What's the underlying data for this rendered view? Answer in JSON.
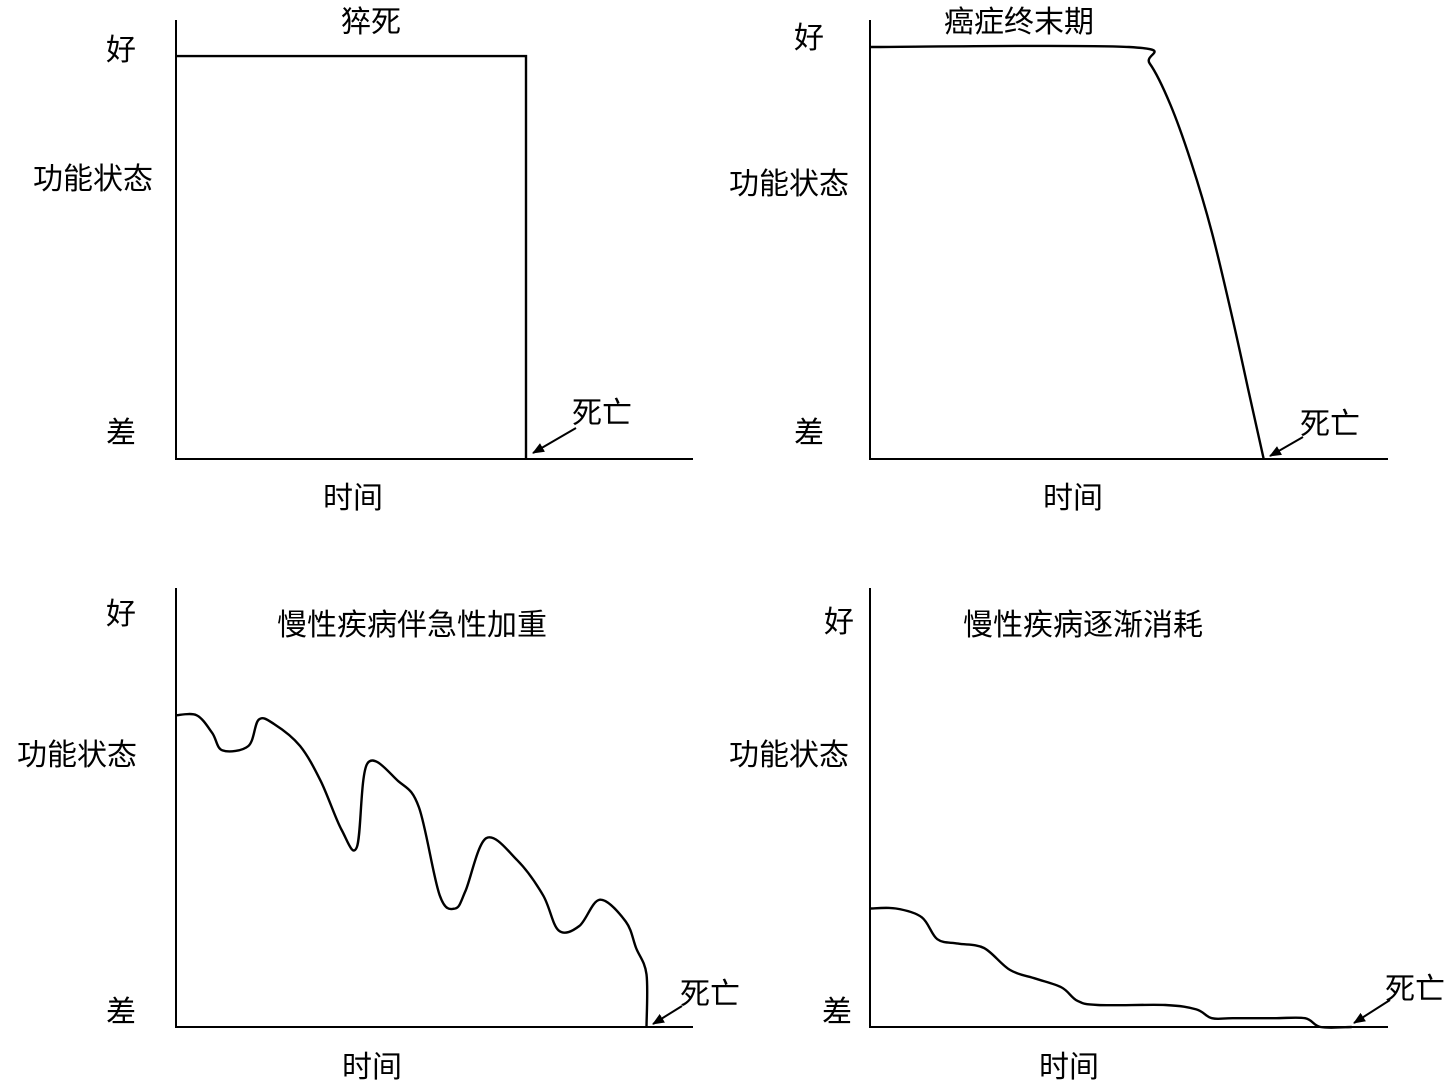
{
  "chart_data": [
    {
      "type": "line",
      "title": "猝死",
      "ylabel": "功能状态",
      "ytick_top": "好",
      "ytick_bottom": "差",
      "xlabel": "时间",
      "annotation": "死亡",
      "ylim": [
        0,
        1
      ],
      "xlim": [
        0,
        1
      ],
      "series": [
        {
          "x": [
            0,
            0.677,
            0.677
          ],
          "y": [
            0.99,
            0.99,
            0
          ]
        }
      ]
    },
    {
      "type": "line",
      "title": "癌症终末期",
      "ylabel": "功能状态",
      "ytick_top": "好",
      "ytick_bottom": "差",
      "xlabel": "时间",
      "annotation": "死亡",
      "ylim": [
        0,
        1
      ],
      "xlim": [
        0,
        1
      ],
      "series": [
        {
          "x": [
            0,
            0.5,
            0.54,
            0.58,
            0.62,
            0.66,
            0.7,
            0.73,
            0.76
          ],
          "y": [
            1.0,
            1.0,
            0.96,
            0.86,
            0.72,
            0.55,
            0.34,
            0.17,
            0.0
          ]
        }
      ]
    },
    {
      "type": "line",
      "title": "慢性疾病伴急性加重",
      "ylabel": "功能状态",
      "ytick_top": "好",
      "ytick_bottom": "差",
      "xlabel": "时间",
      "annotation": "死亡",
      "ylim": [
        0,
        1
      ],
      "xlim": [
        0,
        1
      ],
      "series": [
        {
          "x": [
            0,
            0.04,
            0.07,
            0.09,
            0.14,
            0.16,
            0.19,
            0.24,
            0.28,
            0.32,
            0.35,
            0.37,
            0.43,
            0.47,
            0.51,
            0.54,
            0.56,
            0.6,
            0.66,
            0.71,
            0.74,
            0.78,
            0.82,
            0.87,
            0.89,
            0.91,
            0.91
          ],
          "y": [
            0.71,
            0.71,
            0.67,
            0.63,
            0.64,
            0.7,
            0.69,
            0.64,
            0.56,
            0.45,
            0.41,
            0.6,
            0.56,
            0.5,
            0.3,
            0.27,
            0.31,
            0.43,
            0.38,
            0.3,
            0.22,
            0.23,
            0.29,
            0.24,
            0.18,
            0.12,
            0.0
          ]
        }
      ]
    },
    {
      "type": "line",
      "title": "慢性疾病逐渐消耗",
      "ylabel": "功能状态",
      "ytick_top": "好",
      "ytick_bottom": "差",
      "xlabel": "时间",
      "annotation": "死亡",
      "ylim": [
        0,
        1
      ],
      "xlim": [
        0,
        1
      ],
      "series": [
        {
          "x": [
            0,
            0.05,
            0.1,
            0.13,
            0.17,
            0.22,
            0.27,
            0.32,
            0.37,
            0.4,
            0.44,
            0.57,
            0.63,
            0.66,
            0.7,
            0.78,
            0.84,
            0.87,
            0.93
          ],
          "y": [
            0.27,
            0.27,
            0.25,
            0.2,
            0.19,
            0.18,
            0.13,
            0.11,
            0.09,
            0.06,
            0.05,
            0.05,
            0.04,
            0.02,
            0.02,
            0.02,
            0.02,
            0.0,
            0.0
          ]
        }
      ]
    }
  ]
}
